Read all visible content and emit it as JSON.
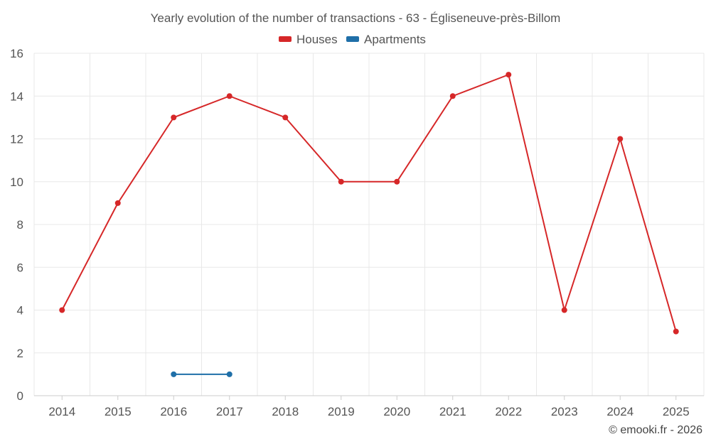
{
  "chart_data": {
    "type": "line",
    "title": "Yearly evolution of the number of transactions - 63 - Égliseneuve-près-Billom",
    "categories": [
      "2014",
      "2015",
      "2016",
      "2017",
      "2018",
      "2019",
      "2020",
      "2021",
      "2022",
      "2023",
      "2024",
      "2025"
    ],
    "series": [
      {
        "name": "Houses",
        "color": "#d62728",
        "values": [
          4,
          9,
          13,
          14,
          13,
          10,
          10,
          14,
          15,
          4,
          12,
          3
        ]
      },
      {
        "name": "Apartments",
        "color": "#1f6fa8",
        "values": [
          null,
          null,
          1,
          1,
          null,
          null,
          null,
          null,
          null,
          null,
          null,
          null
        ]
      }
    ],
    "yticks": [
      "0",
      "2",
      "4",
      "6",
      "8",
      "10",
      "12",
      "14",
      "16"
    ],
    "ylim": [
      0,
      16
    ],
    "xlabel": "",
    "ylabel": "",
    "grid": true,
    "legend_position": "top-center"
  },
  "credit": "© emooki.fr - 2026"
}
